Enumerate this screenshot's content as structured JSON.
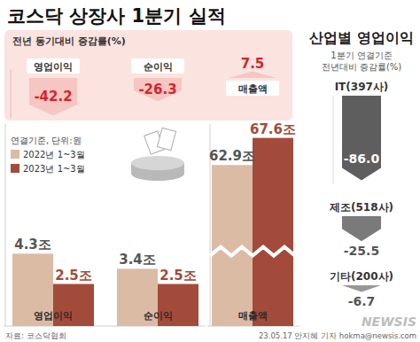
{
  "header": {
    "title": "코스닥 상장사 1분기 실적"
  },
  "chart_data": [
    {
      "type": "bar",
      "title": "전년 동기대비 증감률(%)",
      "categories": [
        "영업이익",
        "순이익",
        "매출액"
      ],
      "values": [
        -42.2,
        -26.3,
        7.5
      ],
      "color": "#f6c6c2",
      "ylim": [
        -45,
        10
      ],
      "data_labels": true,
      "tick_labels": "x"
    },
    {
      "type": "bar",
      "subtitle": "연결기준, 단위:원",
      "categories": [
        "영업이익",
        "순이익"
      ],
      "series": [
        {
          "name": "2022년 1~3월",
          "color": "#dcbba5",
          "values": [
            4.3,
            3.4
          ],
          "value_labels": [
            "4.3조",
            "3.4조"
          ]
        },
        {
          "name": "2023년 1~3월",
          "color": "#a34b3b",
          "values": [
            2.5,
            2.5
          ],
          "value_labels": [
            "2.5조",
            "2.5조"
          ]
        }
      ],
      "ylim": [
        0,
        12
      ],
      "legend": "top-left",
      "data_labels": true,
      "tick_labels": "x"
    },
    {
      "type": "bar",
      "categories": [
        "매출액"
      ],
      "series": [
        {
          "color": "#dcbba5",
          "values": [
            62.9
          ],
          "value_labels": [
            "62.9조"
          ]
        },
        {
          "color": "#a34b3b",
          "values": [
            67.6
          ],
          "value_labels": [
            "67.6조"
          ]
        }
      ],
      "ylim": [
        35,
        70
      ],
      "data_labels": true,
      "tick_labels": "x"
    },
    {
      "type": "bar",
      "title": "산업별 영업이익",
      "subtitle": "1분기 연결기준 전년대비 증감률(%)",
      "categories": [
        "IT(397사)",
        "제조(518사)",
        "기타(200사)"
      ],
      "values": [
        -86.0,
        -25.5,
        -6.7
      ],
      "value_labels": [
        "-86.0",
        "-25.5",
        "-6.7"
      ],
      "colors": [
        "#5e5e5e",
        "#7a7a7a",
        "#979797"
      ],
      "ylim": [
        -90,
        0
      ],
      "data_labels": true,
      "tick_labels": "x"
    }
  ],
  "footer": {
    "source": "자료: 코스닥협회",
    "credit": "23.05.17 안지혜 기자 hokma@newsis.com",
    "logo": "NEWSIS"
  }
}
